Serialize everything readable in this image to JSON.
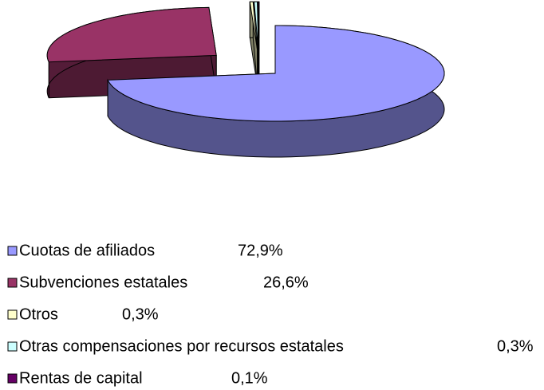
{
  "chart_data": {
    "type": "pie3d",
    "categories": [
      "Cuotas de afiliados",
      "Subvenciones estatales",
      "Otros",
      "Otras compensaciones por recursos estatales",
      "Rentas de capital"
    ],
    "values": [
      72.9,
      26.6,
      0.3,
      0.3,
      0.1
    ],
    "value_labels": [
      "72,9%",
      "26,6%",
      "0,3%",
      "0,3%",
      "0,1%"
    ],
    "colors": [
      "#9999ff",
      "#993366",
      "#ffffcc",
      "#ccffff",
      "#660066"
    ]
  }
}
